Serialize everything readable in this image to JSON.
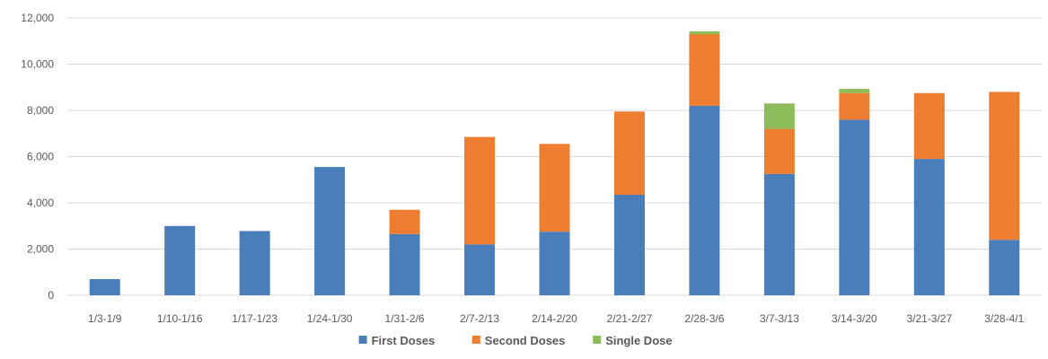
{
  "chart_data": {
    "type": "bar",
    "stacked": true,
    "categories": [
      "1/3-1/9",
      "1/10-1/16",
      "1/17-1/23",
      "1/24-1/30",
      "1/31-2/6",
      "2/7-2/13",
      "2/14-2/20",
      "2/21-2/27",
      "2/28-3/6",
      "3/7-3/13",
      "3/14-3/20",
      "3/21-3/27",
      "3/28-4/1"
    ],
    "series": [
      {
        "name": "First Doses",
        "color": "#4a7ebb",
        "values": [
          700,
          3000,
          2780,
          5550,
          2650,
          2200,
          2750,
          4350,
          8200,
          5250,
          7600,
          5900,
          2400
        ]
      },
      {
        "name": "Second Doses",
        "color": "#ed7d31",
        "values": [
          0,
          0,
          0,
          0,
          1050,
          4650,
          3800,
          3600,
          3100,
          1950,
          1150,
          2850,
          6400
        ]
      },
      {
        "name": "Single Dose",
        "color": "#8fbc5b",
        "values": [
          0,
          0,
          0,
          0,
          0,
          0,
          0,
          0,
          120,
          1100,
          180,
          0,
          0
        ]
      }
    ],
    "ylim": [
      0,
      12000
    ],
    "yticks": [
      "0",
      "2,000",
      "4,000",
      "6,000",
      "8,000",
      "10,000",
      "12,000"
    ],
    "grid": true,
    "legend_position": "bottom",
    "title": "",
    "xlabel": "",
    "ylabel": ""
  }
}
